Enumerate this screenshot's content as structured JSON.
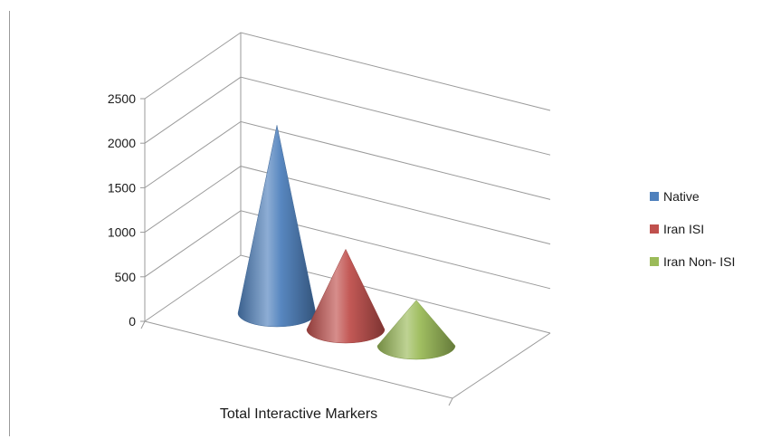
{
  "chart_data": {
    "type": "bar",
    "bar_shape": "3d-cone",
    "categories": [
      "Total Interactive Markers"
    ],
    "series": [
      {
        "name": "Native",
        "values": [
          2090
        ],
        "color": "#4f81bd"
      },
      {
        "name": "Iran ISI",
        "values": [
          880
        ],
        "color": "#c0504d"
      },
      {
        "name": "Iran Non- ISI",
        "values": [
          490
        ],
        "color": "#9bbb59"
      }
    ],
    "ylim": [
      0,
      2500
    ],
    "yticks": [
      "0",
      "500",
      "1000",
      "1500",
      "2000",
      "2500"
    ],
    "title": "",
    "xlabel": "",
    "ylabel": "",
    "legend_position": "right",
    "grid": true
  }
}
